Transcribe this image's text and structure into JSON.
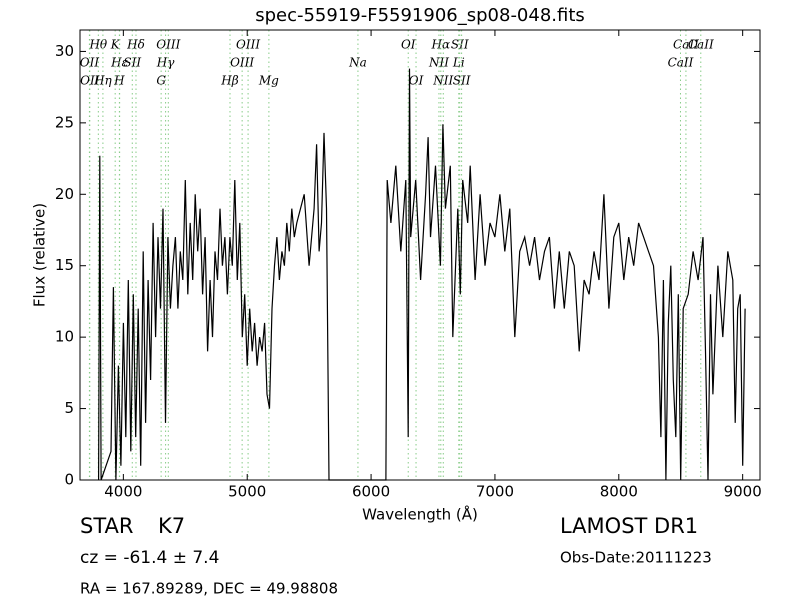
{
  "chart_data": {
    "type": "line",
    "title": "spec-55919-F5591906_sp08-048.fits",
    "x_label": "Wavelength (Å)",
    "y_label": "Flux (relative)",
    "color": "#000000",
    "line_color": "#88cc88",
    "xlim": [
      3650,
      9140
    ],
    "ylim": [
      0,
      31.5
    ],
    "xticks": [
      4000,
      5000,
      6000,
      7000,
      8000,
      9000
    ],
    "yticks": [
      0,
      5,
      10,
      15,
      20,
      25,
      30
    ],
    "x": [
      3800,
      3810,
      3820,
      3900,
      3920,
      3940,
      3960,
      3980,
      4000,
      4020,
      4040,
      4060,
      4080,
      4100,
      4120,
      4140,
      4160,
      4180,
      4200,
      4220,
      4240,
      4260,
      4280,
      4300,
      4320,
      4340,
      4360,
      4380,
      4400,
      4420,
      4440,
      4460,
      4480,
      4500,
      4520,
      4540,
      4560,
      4580,
      4600,
      4620,
      4640,
      4660,
      4680,
      4700,
      4720,
      4740,
      4760,
      4780,
      4800,
      4820,
      4840,
      4860,
      4880,
      4900,
      4920,
      4940,
      4960,
      4980,
      5000,
      5020,
      5040,
      5060,
      5080,
      5100,
      5120,
      5140,
      5160,
      5180,
      5200,
      5220,
      5240,
      5260,
      5280,
      5300,
      5320,
      5340,
      5360,
      5380,
      5400,
      5460,
      5500,
      5540,
      5560,
      5580,
      5600,
      5620,
      5640,
      5660,
      6120,
      6130,
      6160,
      6200,
      6240,
      6280,
      6300,
      6310,
      6320,
      6360,
      6400,
      6440,
      6460,
      6480,
      6520,
      6560,
      6580,
      6600,
      6640,
      6660,
      6700,
      6720,
      6740,
      6780,
      6800,
      6840,
      6880,
      6920,
      6960,
      7000,
      7040,
      7080,
      7120,
      7160,
      7200,
      7240,
      7280,
      7320,
      7360,
      7400,
      7440,
      7480,
      7520,
      7560,
      7600,
      7640,
      7680,
      7720,
      7760,
      7800,
      7840,
      7880,
      7920,
      7960,
      8000,
      8040,
      8080,
      8120,
      8160,
      8200,
      8240,
      8280,
      8320,
      8340,
      8360,
      8380,
      8400,
      8420,
      8440,
      8460,
      8480,
      8500,
      8520,
      8560,
      8600,
      8640,
      8680,
      8700,
      8720,
      8740,
      8760,
      8800,
      8840,
      8880,
      8920,
      8940,
      8960,
      8980,
      9000,
      9020
    ],
    "values": [
      0,
      22.7,
      0,
      2,
      13.5,
      0,
      8,
      1,
      11,
      3,
      14,
      2,
      13,
      3,
      12,
      1,
      16,
      4,
      14,
      7,
      18,
      10,
      17,
      12,
      19,
      4,
      17,
      12,
      15,
      17,
      12,
      16,
      14,
      21,
      13,
      18,
      14,
      20,
      16,
      19,
      13,
      17,
      9,
      14,
      10,
      16,
      14,
      19,
      15,
      17,
      13,
      17,
      15,
      21,
      14,
      18,
      10,
      13,
      8,
      12,
      9,
      11,
      8,
      10,
      9,
      11,
      6,
      5,
      12,
      15,
      17,
      14,
      16,
      15,
      18,
      16,
      19,
      17,
      18,
      20,
      15,
      19,
      23.5,
      16,
      18,
      24.3,
      19,
      0,
      0,
      21,
      18,
      22,
      16,
      21,
      3,
      28.8,
      17,
      21,
      14,
      20,
      24,
      17,
      22,
      15,
      24.9,
      19,
      22,
      10,
      19,
      13,
      21,
      18,
      22,
      14,
      20,
      15,
      18,
      17,
      20,
      16,
      19,
      10,
      16,
      17,
      15,
      17,
      14,
      16,
      17,
      12,
      16,
      12,
      16,
      15,
      9,
      14,
      13,
      16,
      14,
      20,
      12,
      17,
      18,
      14,
      17,
      15,
      18,
      17,
      16,
      15,
      10,
      3,
      14,
      0,
      11,
      15,
      7,
      3,
      13,
      0,
      12,
      13,
      16,
      14,
      17,
      9,
      0,
      13,
      6,
      15,
      10,
      16,
      14,
      4,
      12,
      13,
      1,
      12
    ],
    "lines": [
      {
        "name": "Hθ",
        "wavelength": 3798
      },
      {
        "name": "OII",
        "wavelength": 3726
      },
      {
        "name": "OII",
        "wavelength": 3729
      },
      {
        "name": "K",
        "wavelength": 3934
      },
      {
        "name": "Hε",
        "wavelength": 3970
      },
      {
        "name": "Hη",
        "wavelength": 3835
      },
      {
        "name": "Hδ",
        "wavelength": 4102
      },
      {
        "name": "SII",
        "wavelength": 4072
      },
      {
        "name": "H",
        "wavelength": 3968
      },
      {
        "name": "OIII",
        "wavelength": 4363
      },
      {
        "name": "Hγ",
        "wavelength": 4341
      },
      {
        "name": "G",
        "wavelength": 4305
      },
      {
        "name": "OIII",
        "wavelength": 5007
      },
      {
        "name": "OIII",
        "wavelength": 4959
      },
      {
        "name": "Hβ",
        "wavelength": 4861
      },
      {
        "name": "OI",
        "wavelength": 6300
      },
      {
        "name": "Na",
        "wavelength": 5894
      },
      {
        "name": "Mg",
        "wavelength": 5175
      },
      {
        "name": "Hα",
        "wavelength": 6563
      },
      {
        "name": "NII",
        "wavelength": 6548
      },
      {
        "name": "OI",
        "wavelength": 6363
      },
      {
        "name": "SII",
        "wavelength": 6716
      },
      {
        "name": "Li",
        "wavelength": 6708
      },
      {
        "name": "NII",
        "wavelength": 6583
      },
      {
        "name": "CaII",
        "wavelength": 8542
      },
      {
        "name": "CaII",
        "wavelength": 8498
      },
      {
        "name": "SII",
        "wavelength": 6731
      },
      {
        "name": "CaII",
        "wavelength": 8662
      }
    ]
  },
  "info": {
    "class": "STAR",
    "subclass": "K7",
    "cz": "cz = -61.4 ± 7.4",
    "coords": "RA = 167.89289, DEC = 49.98808",
    "survey": "LAMOST DR1",
    "obs_date": "Obs-Date:20111223"
  }
}
